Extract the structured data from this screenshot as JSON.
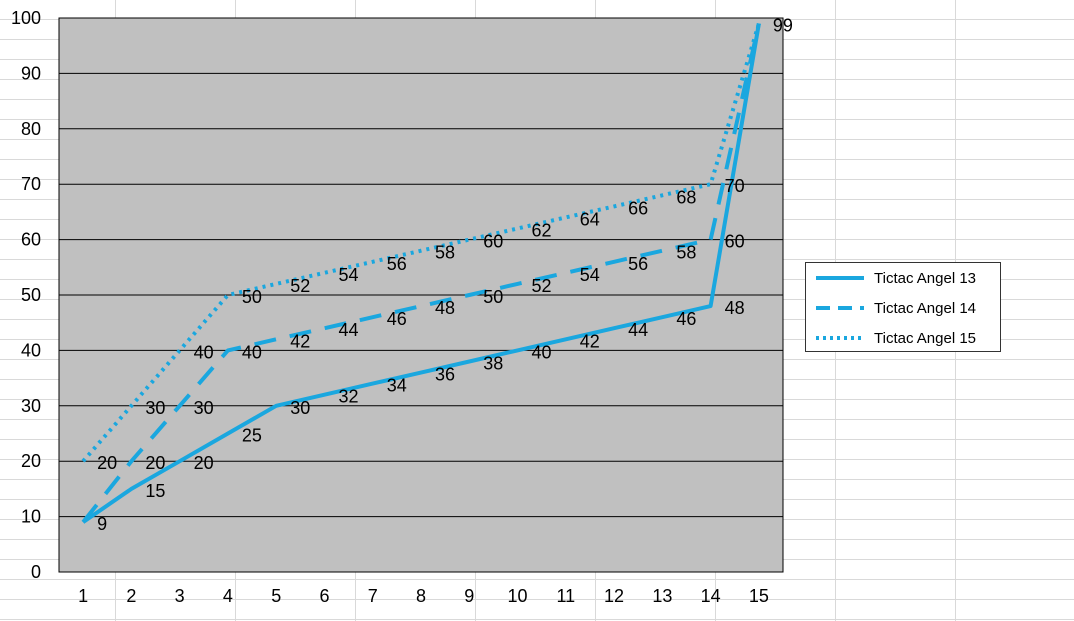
{
  "chart_data": {
    "type": "line",
    "x": [
      1,
      2,
      3,
      4,
      5,
      6,
      7,
      8,
      9,
      10,
      11,
      12,
      13,
      14,
      15
    ],
    "ylim": [
      0,
      100
    ],
    "yticks": [
      0,
      10,
      20,
      30,
      40,
      50,
      60,
      70,
      80,
      90,
      100
    ],
    "grid": true,
    "legend_position": "right",
    "plot_background": "#c0c0c0",
    "series": [
      {
        "name": "Tictac Angel 13",
        "style": "solid",
        "color": "#1aa7df",
        "values": [
          9,
          15,
          20,
          25,
          30,
          32,
          34,
          36,
          38,
          40,
          42,
          44,
          46,
          48,
          99
        ]
      },
      {
        "name": "Tictac Angel 14",
        "style": "dashed",
        "color": "#1aa7df",
        "values": [
          9,
          20,
          30,
          40,
          42,
          44,
          46,
          48,
          50,
          52,
          54,
          56,
          58,
          60,
          99
        ]
      },
      {
        "name": "Tictac Angel 15",
        "style": "dotted",
        "color": "#1aa7df",
        "values": [
          20,
          30,
          40,
          50,
          52,
          54,
          56,
          58,
          60,
          62,
          64,
          66,
          68,
          70,
          99
        ]
      }
    ],
    "data_labels": {
      "values": [
        "9",
        "15",
        "20",
        "25",
        "30",
        "32",
        "34",
        "36",
        "38",
        "40",
        "42",
        "44",
        "46",
        "48",
        "20",
        "30",
        "40",
        "52",
        "54",
        "56",
        "58",
        "60",
        "62",
        "64",
        "66",
        "68",
        "70",
        "99",
        "20",
        "30",
        "40",
        "50",
        "42",
        "44",
        "46",
        "48",
        "50",
        "52",
        "54",
        "56",
        "58",
        "60"
      ],
      "x": [
        1,
        2,
        3,
        4,
        5,
        6,
        7,
        8,
        9,
        10,
        11,
        12,
        13,
        14,
        1,
        2,
        3,
        5,
        6,
        7,
        8,
        9,
        10,
        11,
        12,
        13,
        14,
        15,
        2,
        3,
        4,
        4,
        5,
        6,
        7,
        8,
        9,
        10,
        11,
        12,
        13,
        14
      ],
      "y": [
        9,
        15,
        20,
        25,
        30,
        32,
        34,
        36,
        38,
        40,
        42,
        44,
        46,
        48,
        20,
        30,
        40,
        52,
        54,
        56,
        58,
        60,
        62,
        64,
        66,
        68,
        70,
        99,
        20,
        30,
        40,
        50,
        42,
        44,
        46,
        48,
        50,
        52,
        54,
        56,
        58,
        60
      ]
    }
  }
}
